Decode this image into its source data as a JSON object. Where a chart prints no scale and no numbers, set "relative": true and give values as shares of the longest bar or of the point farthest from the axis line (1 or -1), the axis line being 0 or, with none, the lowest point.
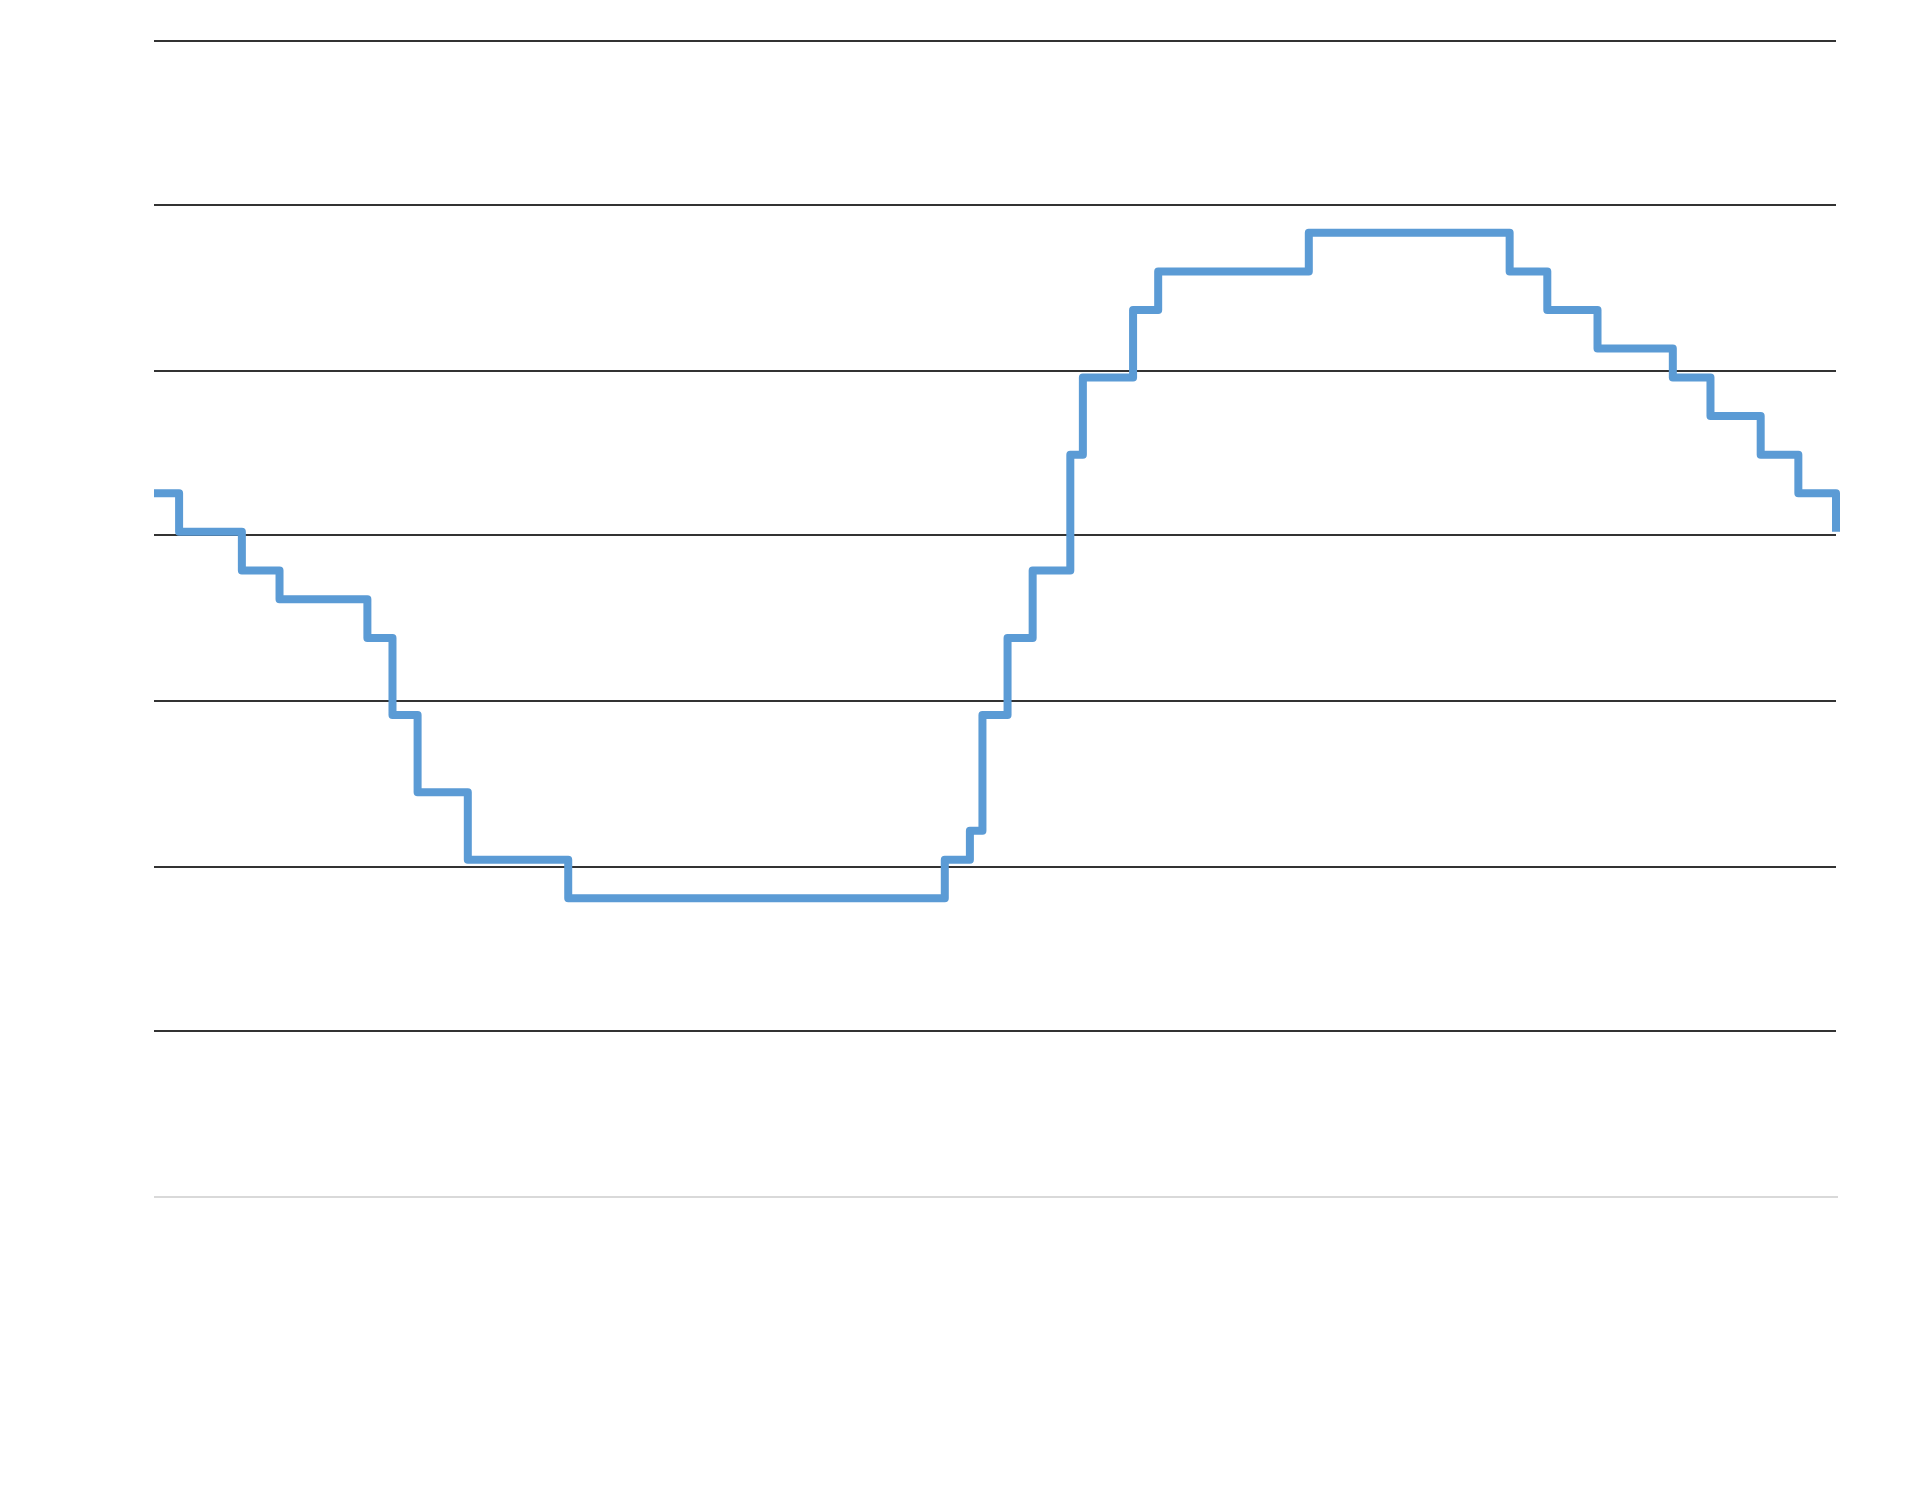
{
  "chart_data": {
    "type": "step",
    "relative": true,
    "grid": "y",
    "color": "#5b9bd5",
    "categories": [
      null,
      null,
      null,
      null,
      null,
      null,
      null,
      null,
      null,
      null,
      null,
      null,
      null,
      null,
      null,
      null,
      null,
      null,
      null,
      null,
      null,
      null,
      null,
      null,
      null,
      null,
      null,
      null,
      null,
      null,
      null,
      null,
      null,
      null,
      null,
      null,
      null,
      null,
      null,
      null,
      null,
      null,
      null,
      null,
      null,
      null,
      null,
      null,
      null,
      null,
      null,
      null,
      null,
      null,
      null,
      null,
      null,
      null,
      null,
      null,
      null,
      null,
      null,
      null,
      null,
      null,
      null,
      null,
      null,
      null,
      null,
      null,
      null,
      null,
      null,
      null,
      null,
      null,
      null,
      null,
      null,
      null,
      null,
      null,
      null,
      null,
      null,
      null,
      null,
      null,
      null,
      null,
      null,
      null,
      null,
      null,
      null,
      null,
      null,
      null,
      null,
      null,
      null,
      null,
      null,
      null,
      null,
      null,
      null,
      null,
      null,
      null,
      null,
      null,
      null,
      null,
      null,
      null,
      null,
      null,
      null,
      null,
      null,
      null,
      null,
      null,
      null,
      null,
      null,
      null,
      null,
      null,
      null,
      null,
      null
    ],
    "values": [
      0.73,
      0.73,
      0.69,
      0.69,
      0.69,
      0.69,
      0.69,
      0.65,
      0.65,
      0.65,
      0.62,
      0.62,
      0.62,
      0.62,
      0.62,
      0.62,
      0.62,
      0.58,
      0.58,
      0.5,
      0.5,
      0.42,
      0.42,
      0.42,
      0.42,
      0.35,
      0.35,
      0.35,
      0.35,
      0.35,
      0.35,
      0.35,
      0.35,
      0.31,
      0.31,
      0.31,
      0.31,
      0.31,
      0.31,
      0.31,
      0.31,
      0.31,
      0.31,
      0.31,
      0.31,
      0.31,
      0.31,
      0.31,
      0.31,
      0.31,
      0.31,
      0.31,
      0.31,
      0.31,
      0.31,
      0.31,
      0.31,
      0.31,
      0.31,
      0.31,
      0.31,
      0.31,
      0.31,
      0.35,
      0.35,
      0.38,
      0.5,
      0.5,
      0.58,
      0.58,
      0.65,
      0.65,
      0.65,
      0.77,
      0.85,
      0.85,
      0.85,
      0.85,
      0.92,
      0.92,
      0.96,
      0.96,
      0.96,
      0.96,
      0.96,
      0.96,
      0.96,
      0.96,
      0.96,
      0.96,
      0.96,
      0.96,
      1,
      1,
      1,
      1,
      1,
      1,
      1,
      1,
      1,
      1,
      1,
      1,
      1,
      1,
      1,
      1,
      0.96,
      0.96,
      0.96,
      0.92,
      0.92,
      0.92,
      0.92,
      0.88,
      0.88,
      0.88,
      0.88,
      0.88,
      0.88,
      0.85,
      0.85,
      0.85,
      0.81,
      0.81,
      0.81,
      0.81,
      0.77,
      0.77,
      0.77,
      0.73,
      0.73,
      0.73,
      0.69
    ]
  }
}
